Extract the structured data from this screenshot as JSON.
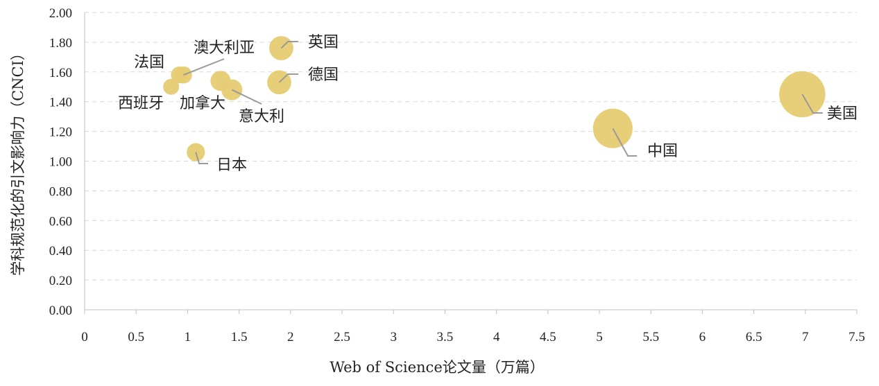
{
  "chart_data": {
    "type": "scatter",
    "subtype": "bubble",
    "xlabel": "Web of Science论文量（万篇）",
    "ylabel": "学科规范化的引文影响力（CNCI）",
    "xlim": [
      0,
      7.5
    ],
    "ylim": [
      0,
      2.0
    ],
    "xticks": [
      "0",
      "0.5",
      "1",
      "1.5",
      "2",
      "2.5",
      "3",
      "3.5",
      "4",
      "4.5",
      "5",
      "5.5",
      "6",
      "6.5",
      "7",
      "7.5"
    ],
    "yticks": [
      "0.00",
      "0.20",
      "0.40",
      "0.60",
      "0.80",
      "1.00",
      "1.20",
      "1.40",
      "1.60",
      "1.80",
      "2.00"
    ],
    "grid": "horizontal-dashed",
    "bubble_color": "#E6CB72",
    "leader_color": "#9A9A9A",
    "points": [
      {
        "name": "英国",
        "x": 1.91,
        "y": 1.76
      },
      {
        "name": "德国",
        "x": 1.89,
        "y": 1.53
      },
      {
        "name": "澳大利亚",
        "x": 0.96,
        "y": 1.58
      },
      {
        "name": "法国",
        "x": 0.92,
        "y": 1.58
      },
      {
        "name": "西班牙",
        "x": 0.84,
        "y": 1.5
      },
      {
        "name": "加拿大",
        "x": 1.32,
        "y": 1.54
      },
      {
        "name": "意大利",
        "x": 1.43,
        "y": 1.48
      },
      {
        "name": "日本",
        "x": 1.08,
        "y": 1.06
      },
      {
        "name": "中国",
        "x": 5.13,
        "y": 1.22
      },
      {
        "name": "美国",
        "x": 6.97,
        "y": 1.45
      }
    ]
  }
}
